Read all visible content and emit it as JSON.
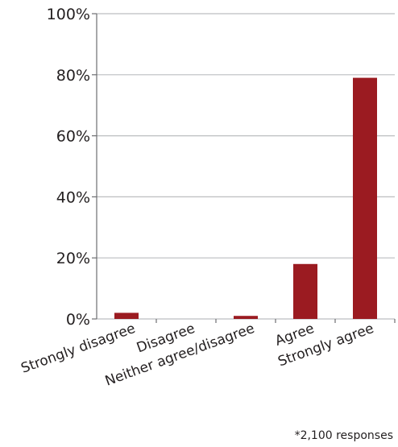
{
  "chart_data": {
    "type": "bar",
    "categories": [
      "Strongly disagree",
      "Disagree",
      "Neither agree/disagree",
      "Agree",
      "Strongly agree"
    ],
    "values": [
      2,
      0,
      1,
      18,
      79
    ],
    "yticks": [
      "0%",
      "20%",
      "40%",
      "60%",
      "80%",
      "100%"
    ],
    "ylim": [
      0,
      100
    ],
    "grid": true,
    "bar_color": "#9b1b21",
    "footnote": "*2,100 responses"
  }
}
